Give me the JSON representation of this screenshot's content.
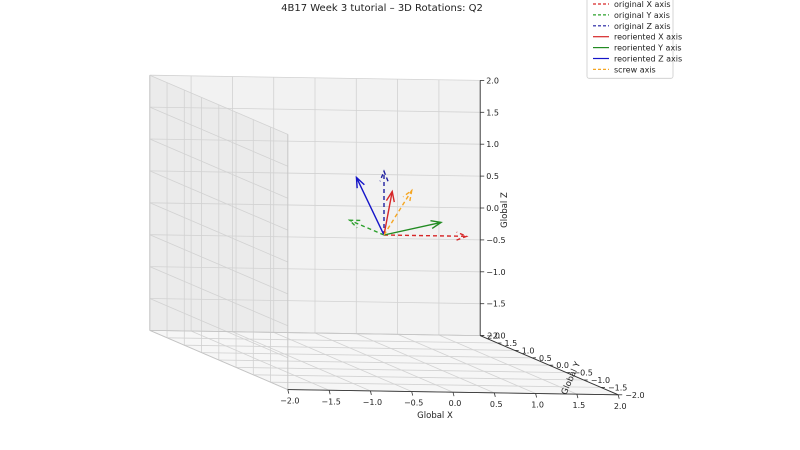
{
  "chart_data": {
    "type": "line",
    "projection": "3d",
    "title": "4B17 Week 3 tutorial – 3D Rotations: Q2",
    "xlabel": "Global X",
    "ylabel": "Global Y",
    "zlabel": "Global Z",
    "xlim": [
      -2.0,
      2.0
    ],
    "ylim": [
      -2.0,
      2.0
    ],
    "zlim": [
      -2.0,
      2.0
    ],
    "x_ticks": [
      "−2.0",
      "−1.5",
      "−1.0",
      "−0.5",
      "0.0",
      "0.5",
      "1.0",
      "1.5",
      "2.0"
    ],
    "y_ticks": [
      "−2.0",
      "−1.5",
      "−1.0",
      "−0.5",
      "0.0",
      "0.5",
      "1.0",
      "1.5",
      "2.0"
    ],
    "z_ticks": [
      "−2.0",
      "−1.5",
      "−1.0",
      "−0.5",
      "0.0",
      "0.5",
      "1.0",
      "1.5",
      "2.0"
    ],
    "grid": true,
    "legend_position": "top-right",
    "series": [
      {
        "name": "original X axis",
        "color": "#d62728",
        "style": "dashed",
        "start": [
          0,
          0,
          0
        ],
        "end": [
          1,
          0,
          0
        ]
      },
      {
        "name": "original Y axis",
        "color": "#2ca02c",
        "style": "dashed",
        "start": [
          0,
          0,
          0
        ],
        "end": [
          0,
          1,
          0
        ]
      },
      {
        "name": "original Z axis",
        "color": "#1f1fa0",
        "style": "dashed",
        "start": [
          0,
          0,
          0
        ],
        "end": [
          0,
          0,
          1
        ]
      },
      {
        "name": "reoriented X axis",
        "color": "#d62728",
        "style": "solid",
        "start": [
          0,
          0,
          0
        ],
        "end": [
          0.35,
          0.6,
          0.55
        ]
      },
      {
        "name": "reoriented Y axis",
        "color": "#228b22",
        "style": "solid",
        "start": [
          0,
          0,
          0
        ],
        "end": [
          0.9,
          0.5,
          0.1
        ]
      },
      {
        "name": "reoriented Z axis",
        "color": "#1515c8",
        "style": "solid",
        "start": [
          0,
          0,
          0
        ],
        "end": [
          -0.25,
          0.2,
          0.85
        ]
      },
      {
        "name": "screw axis",
        "color": "#f5a623",
        "style": "dashed",
        "start": [
          0,
          0,
          0
        ],
        "end": [
          0.577,
          0.577,
          0.577
        ]
      }
    ]
  }
}
